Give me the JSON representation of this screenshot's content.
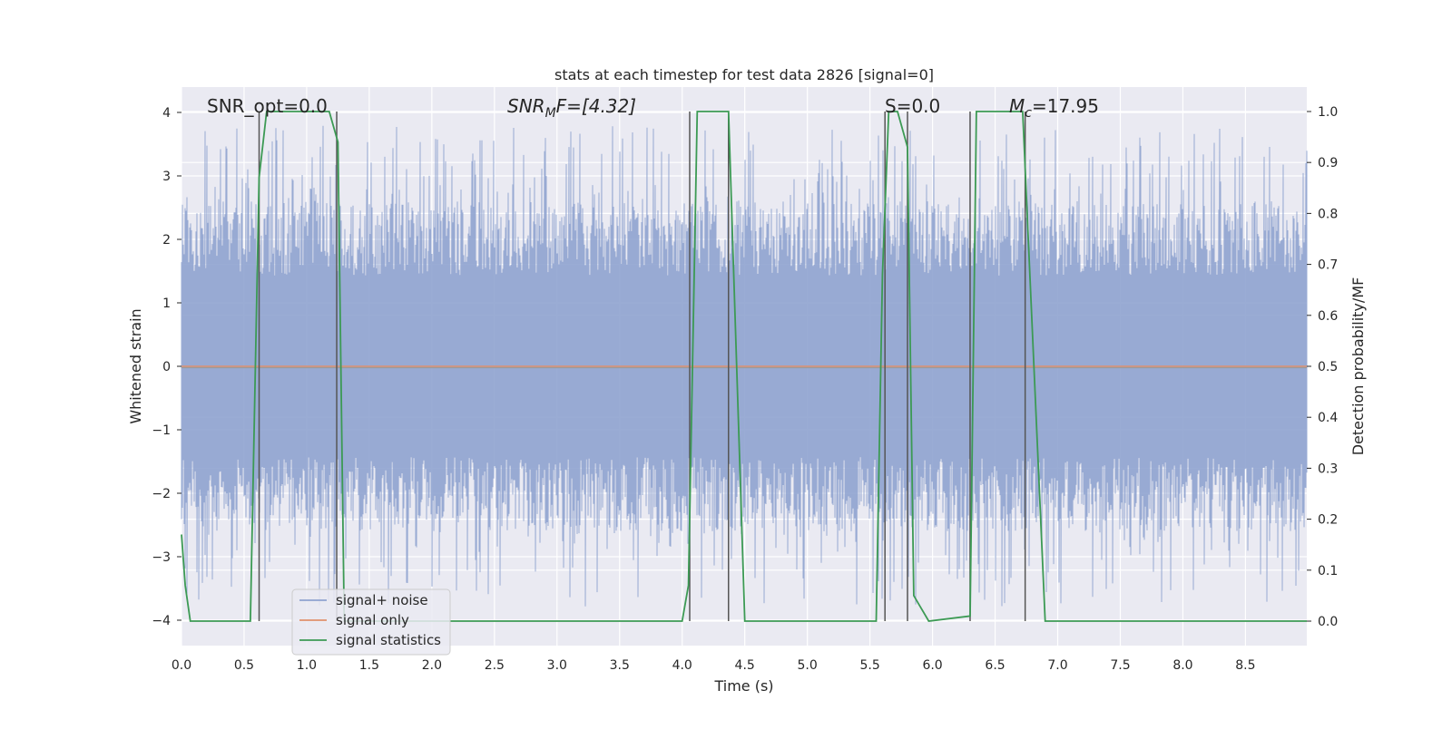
{
  "chart_data": {
    "type": "line",
    "title": "stats at each timestep for test data 2826 [signal=0]",
    "xlabel": "Time (s)",
    "ylabel": "Whitened strain",
    "y2label": "Detection probability/MF",
    "xlim": [
      0,
      8.99
    ],
    "ylim": [
      -4.4,
      4.4
    ],
    "y2lim": [
      -0.048,
      1.048
    ],
    "xticks": [
      "0.0",
      "0.5",
      "1.0",
      "1.5",
      "2.0",
      "2.5",
      "3.0",
      "3.5",
      "4.0",
      "4.5",
      "5.0",
      "5.5",
      "6.0",
      "6.5",
      "7.0",
      "7.5",
      "8.0",
      "8.5"
    ],
    "yticks": [
      "4",
      "3",
      "2",
      "1",
      "0",
      "−1",
      "−2",
      "−3",
      "−4"
    ],
    "y2ticks": [
      "1.0",
      "0.9",
      "0.8",
      "0.7",
      "0.6",
      "0.5",
      "0.4",
      "0.3",
      "0.2",
      "0.1",
      "0.0"
    ],
    "grid": true,
    "legend_position": "lower-left",
    "annotations": {
      "snr_opt": "SNR_opt=0.0",
      "snr_mf_main": "SNR",
      "snr_mf_sub": "M",
      "snr_mf_rest": "F=[4.32]",
      "s_value": "S=0.0",
      "mc_main": "M",
      "mc_sub": "c",
      "mc_rest": "=17.95"
    },
    "series": [
      {
        "name": "signal+ noise",
        "color": "#8fa3cf",
        "noise_envelope": {
          "typical_abs_max": 2.6,
          "extreme_abs_max": 3.8
        }
      },
      {
        "name": "signal only",
        "color": "#e0906c",
        "x": [
          0,
          8.99
        ],
        "y": [
          0,
          0
        ]
      },
      {
        "name": "signal statistics",
        "color": "#3c9a54",
        "x": [
          0.0,
          0.03,
          0.07,
          0.12,
          0.55,
          0.62,
          0.68,
          1.18,
          1.25,
          1.3,
          4.0,
          4.05,
          4.12,
          4.37,
          4.5,
          5.55,
          5.6,
          5.65,
          5.72,
          5.8,
          5.85,
          5.97,
          6.3,
          6.35,
          6.72,
          6.9,
          8.99
        ],
        "y": [
          0.17,
          0.07,
          0.0,
          0.0,
          0.0,
          0.87,
          1.0,
          1.0,
          0.94,
          0.0,
          0.0,
          0.07,
          1.0,
          1.0,
          0.0,
          0.0,
          0.68,
          1.0,
          1.0,
          0.93,
          0.05,
          0.0,
          0.01,
          1.0,
          1.0,
          0.0,
          0.0
        ]
      }
    ],
    "vertical_markers": [
      0.62,
      1.24,
      4.06,
      4.37,
      5.62,
      5.8,
      6.3,
      6.74
    ]
  }
}
